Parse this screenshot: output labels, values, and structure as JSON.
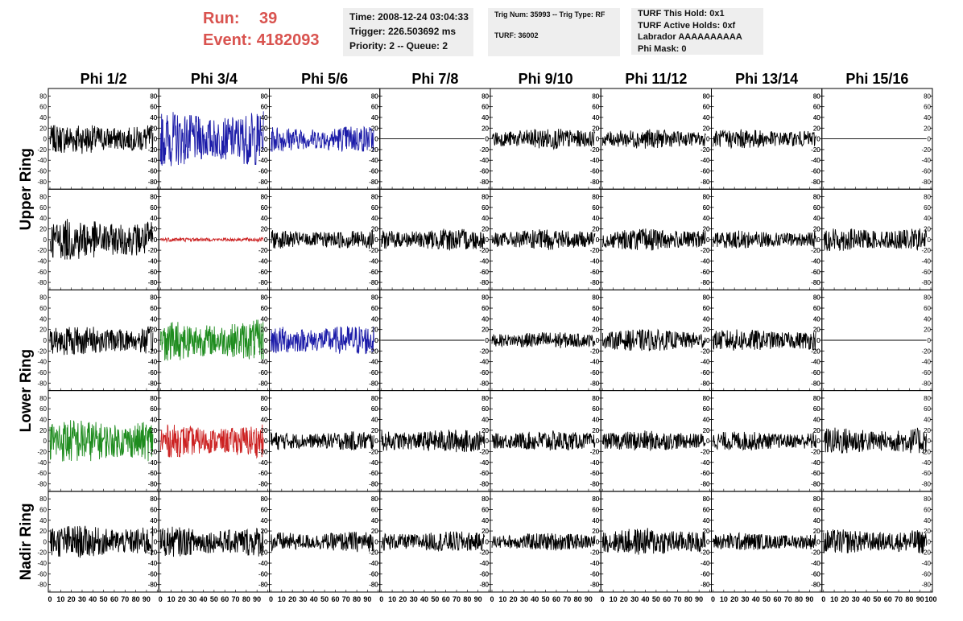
{
  "header": {
    "run_label": "Run:",
    "run_value": "39",
    "event_label": "Event:",
    "event_value": "4182093",
    "time_line": "Time: 2008-12-24 03:04:33",
    "trigger_line": "Trigger: 226.503692 ms",
    "priority_line": "Priority: 2 -- Queue: 2",
    "trig_line": "Trig Num: 35993 -- Trig Type: RF",
    "turf_line": "TURF: 36002",
    "hold_line": "TURF This Hold: 0x1",
    "active_holds_line": "TURF Active Holds: 0xf",
    "labrador_line": "Labrador AAAAAAAAAA",
    "phi_mask_line": "Phi Mask: 0"
  },
  "colors": {
    "header_red": "#d9534f",
    "trace_black": "#000000",
    "trace_blue": "#1a1aa8",
    "trace_green": "#1e8c1e",
    "trace_red": "#cc2222"
  },
  "chart_data": {
    "type": "line",
    "columns": [
      "Phi 1/2",
      "Phi 3/4",
      "Phi 5/6",
      "Phi 7/8",
      "Phi 9/10",
      "Phi 11/12",
      "Phi 13/14",
      "Phi 15/16"
    ],
    "row_groups": [
      {
        "label": "Upper Ring",
        "rows": [
          0,
          1
        ]
      },
      {
        "label": "Lower Ring",
        "rows": [
          2,
          3
        ]
      },
      {
        "label": "Nadir Ring",
        "rows": [
          4
        ]
      }
    ],
    "xlim": [
      0,
      100
    ],
    "ylim": [
      -85,
      85
    ],
    "y_ticks": [
      80,
      60,
      40,
      20,
      0,
      -20,
      -40,
      -60,
      -80
    ],
    "x_ticks": [
      0,
      10,
      20,
      30,
      40,
      50,
      60,
      70,
      80,
      90,
      100
    ],
    "panels": [
      [
        {
          "color": "black",
          "amplitude": 22
        },
        {
          "color": "blue",
          "amplitude": 40
        },
        {
          "color": "blue",
          "amplitude": 20
        },
        {
          "color": "black",
          "amplitude": 0
        },
        {
          "color": "black",
          "amplitude": 15
        },
        {
          "color": "black",
          "amplitude": 14
        },
        {
          "color": "black",
          "amplitude": 14
        },
        {
          "color": "black",
          "amplitude": 0
        }
      ],
      [
        {
          "color": "black",
          "amplitude": 30
        },
        {
          "color": "red",
          "amplitude": 3
        },
        {
          "color": "black",
          "amplitude": 14
        },
        {
          "color": "black",
          "amplitude": 16
        },
        {
          "color": "black",
          "amplitude": 15
        },
        {
          "color": "black",
          "amplitude": 16
        },
        {
          "color": "black",
          "amplitude": 13
        },
        {
          "color": "black",
          "amplitude": 17
        }
      ],
      [
        {
          "color": "black",
          "amplitude": 22
        },
        {
          "color": "green",
          "amplitude": 30
        },
        {
          "color": "blue",
          "amplitude": 22
        },
        {
          "color": "black",
          "amplitude": 0
        },
        {
          "color": "black",
          "amplitude": 12
        },
        {
          "color": "black",
          "amplitude": 16
        },
        {
          "color": "black",
          "amplitude": 16
        },
        {
          "color": "black",
          "amplitude": 0
        }
      ],
      [
        {
          "color": "green",
          "amplitude": 32
        },
        {
          "color": "red",
          "amplitude": 24
        },
        {
          "color": "black",
          "amplitude": 14
        },
        {
          "color": "black",
          "amplitude": 17
        },
        {
          "color": "black",
          "amplitude": 15
        },
        {
          "color": "black",
          "amplitude": 15
        },
        {
          "color": "black",
          "amplitude": 14
        },
        {
          "color": "black",
          "amplitude": 20
        }
      ],
      [
        {
          "color": "black",
          "amplitude": 24
        },
        {
          "color": "black",
          "amplitude": 22
        },
        {
          "color": "black",
          "amplitude": 15
        },
        {
          "color": "black",
          "amplitude": 15
        },
        {
          "color": "black",
          "amplitude": 13
        },
        {
          "color": "black",
          "amplitude": 20
        },
        {
          "color": "black",
          "amplitude": 13
        },
        {
          "color": "black",
          "amplitude": 18
        }
      ]
    ]
  }
}
